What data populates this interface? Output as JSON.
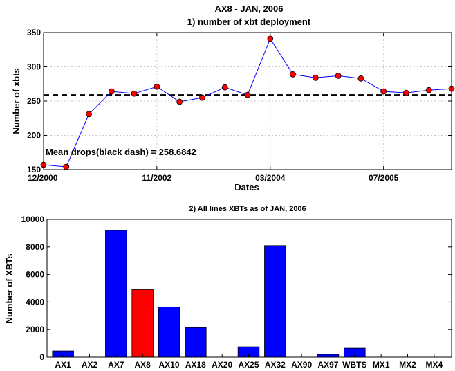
{
  "chart_data": [
    {
      "type": "line",
      "title": "AX8 - JAN, 2006",
      "subtitle": "1) number of xbt deployment",
      "xlabel": "Dates",
      "ylabel": "Number of xbts",
      "ylim": [
        150,
        350
      ],
      "yticks": [
        150,
        200,
        250,
        300,
        350
      ],
      "xtick_labels": [
        "12/2000",
        "11/2002",
        "03/2004",
        "07/2005"
      ],
      "xtick_index": [
        0,
        5,
        10,
        15
      ],
      "values": [
        157,
        154,
        231,
        264,
        261,
        271,
        249,
        255,
        270,
        259,
        341,
        289,
        284,
        287,
        283,
        264,
        262,
        266,
        268
      ],
      "mean": 258.6842,
      "annotation": "Mean drops(black dash) = 258.6842",
      "line_color": "#0000ff",
      "marker_color": "#ff0000",
      "mean_color": "#000000",
      "grid": true
    },
    {
      "type": "bar",
      "title": "2) All lines XBTs as of JAN, 2006",
      "xlabel": "",
      "ylabel": "Number of XBTs",
      "ylim": [
        0,
        10000
      ],
      "yticks": [
        0,
        2000,
        4000,
        6000,
        8000,
        10000
      ],
      "categories": [
        "AX1",
        "AX2",
        "AX7",
        "AX8",
        "AX10",
        "AX18",
        "AX20",
        "AX25",
        "AX32",
        "AX90",
        "AX97",
        "WBTS",
        "MX1",
        "MX2",
        "MX4"
      ],
      "values": [
        450,
        0,
        9200,
        4900,
        3650,
        2150,
        0,
        750,
        8100,
        0,
        200,
        650,
        0,
        0,
        0
      ],
      "bar_color": "#0000ff",
      "highlight_category": "AX8",
      "highlight_color": "#ff0000",
      "grid": false
    }
  ]
}
